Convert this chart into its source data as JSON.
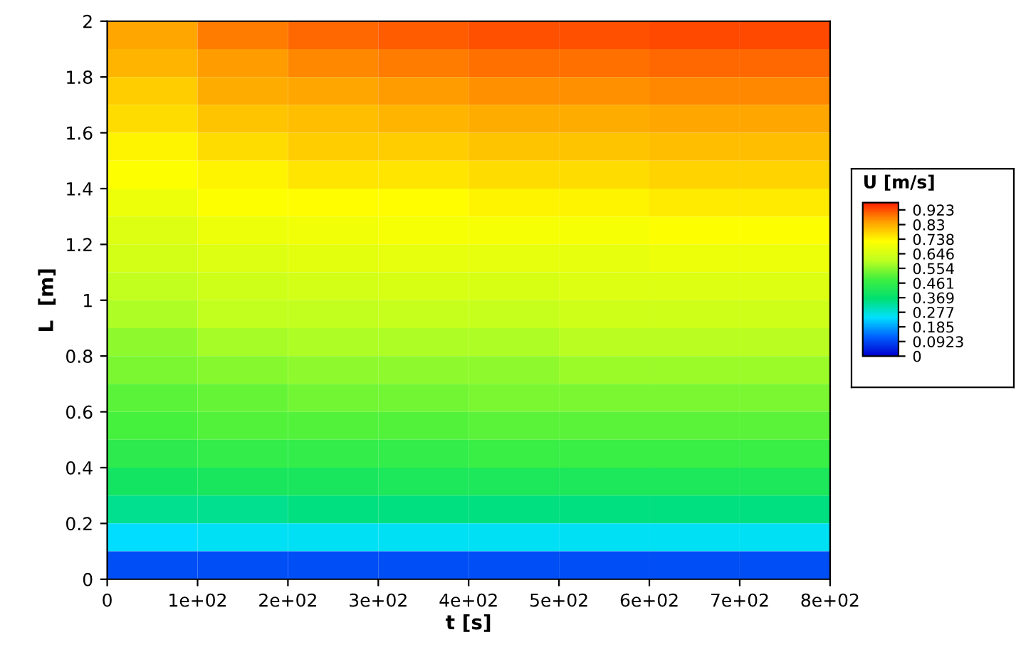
{
  "chart_data": {
    "type": "heatmap",
    "xlabel": "t [s]",
    "ylabel": "L  [m]",
    "clabel": "U [m/s]",
    "cells": [
      [
        0.84,
        0.88,
        0.9,
        0.91,
        0.92,
        0.92,
        0.93,
        0.93
      ],
      [
        0.82,
        0.85,
        0.87,
        0.88,
        0.89,
        0.89,
        0.9,
        0.9
      ],
      [
        0.79,
        0.83,
        0.84,
        0.85,
        0.86,
        0.86,
        0.87,
        0.87
      ],
      [
        0.77,
        0.8,
        0.81,
        0.82,
        0.83,
        0.83,
        0.84,
        0.84
      ],
      [
        0.74,
        0.77,
        0.79,
        0.79,
        0.8,
        0.8,
        0.81,
        0.81
      ],
      [
        0.72,
        0.74,
        0.76,
        0.76,
        0.77,
        0.77,
        0.78,
        0.78
      ],
      [
        0.69,
        0.72,
        0.73,
        0.73,
        0.74,
        0.74,
        0.75,
        0.75
      ],
      [
        0.66,
        0.69,
        0.7,
        0.71,
        0.71,
        0.71,
        0.72,
        0.72
      ],
      [
        0.64,
        0.66,
        0.67,
        0.68,
        0.68,
        0.68,
        0.69,
        0.69
      ],
      [
        0.61,
        0.63,
        0.64,
        0.65,
        0.65,
        0.66,
        0.66,
        0.66
      ],
      [
        0.59,
        0.61,
        0.61,
        0.62,
        0.62,
        0.63,
        0.63,
        0.63
      ],
      [
        0.56,
        0.58,
        0.59,
        0.59,
        0.59,
        0.6,
        0.6,
        0.6
      ],
      [
        0.54,
        0.55,
        0.56,
        0.56,
        0.56,
        0.57,
        0.57,
        0.57
      ],
      [
        0.51,
        0.52,
        0.53,
        0.53,
        0.54,
        0.54,
        0.54,
        0.54
      ],
      [
        0.49,
        0.5,
        0.5,
        0.5,
        0.51,
        0.51,
        0.51,
        0.51
      ],
      [
        0.45,
        0.46,
        0.46,
        0.46,
        0.47,
        0.47,
        0.47,
        0.47
      ],
      [
        0.4,
        0.41,
        0.41,
        0.42,
        0.42,
        0.42,
        0.42,
        0.42
      ],
      [
        0.34,
        0.34,
        0.35,
        0.35,
        0.35,
        0.35,
        0.35,
        0.35
      ],
      [
        0.24,
        0.25,
        0.25,
        0.25,
        0.25,
        0.25,
        0.25,
        0.25
      ],
      [
        0.1,
        0.1,
        0.1,
        0.1,
        0.1,
        0.1,
        0.1,
        0.1
      ]
    ],
    "xlim": [
      0,
      800
    ],
    "xticks": [
      0,
      {
        "value": 100,
        "label": "1e+02"
      },
      {
        "value": 200,
        "label": "2e+02"
      },
      {
        "value": 300,
        "label": "3e+02"
      },
      {
        "value": 400,
        "label": "4e+02"
      },
      {
        "value": 500,
        "label": "5e+02"
      },
      {
        "value": 600,
        "label": "6e+02"
      },
      {
        "value": 700,
        "label": "7e+02"
      },
      {
        "value": 800,
        "label": "8e+02"
      }
    ],
    "ylim": [
      0,
      2
    ],
    "yticks": [
      0,
      0.2,
      0.4,
      0.6,
      0.8,
      1,
      1.2,
      1.4,
      1.6,
      1.8,
      2
    ],
    "clim": [
      0,
      0.969
    ],
    "cticks": [
      0,
      0.0923,
      0.185,
      0.277,
      0.369,
      0.461,
      0.554,
      0.646,
      0.738,
      0.83,
      0.923
    ]
  }
}
